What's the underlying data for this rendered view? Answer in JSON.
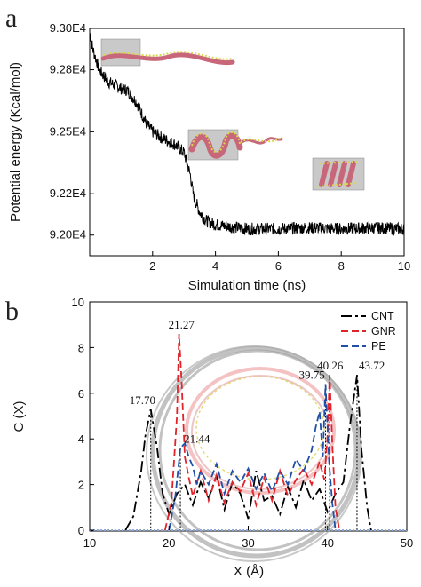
{
  "figure": {
    "panel_a_letter": "a",
    "panel_b_letter": "b",
    "panel_a_inset_icons": [
      "nanostructure-inset-icon",
      "nanostructure-inset-icon",
      "nanostructure-inset-icon"
    ],
    "panel_b_inset_icon": "ring-overlay-icon"
  },
  "chart_data": [
    {
      "type": "line",
      "xlabel": "Simulation time (ns)",
      "ylabel": "Potential energy (Kcal/mol)",
      "xlim": [
        0,
        10
      ],
      "ylim": [
        9.19,
        9.3
      ],
      "xticks": [
        2,
        4,
        6,
        8,
        10
      ],
      "xtick_labels": [
        "2",
        "4",
        "6",
        "8",
        "10"
      ],
      "yticks": [
        9.2,
        9.22,
        9.25,
        9.28,
        9.3
      ],
      "ytick_labels": [
        "9.20E4",
        "9.22E4",
        "9.25E4",
        "9.28E4",
        "9.30E4"
      ],
      "grid": false,
      "series": [
        {
          "color": "#000000",
          "x": [
            0,
            0.1,
            0.3,
            0.6,
            1.0,
            1.2,
            1.5,
            1.8,
            2.0,
            2.3,
            2.7,
            3.0,
            3.2,
            3.3,
            3.5,
            3.7,
            4.0,
            4.5,
            5,
            6,
            7,
            8,
            9,
            10
          ],
          "y": [
            9.298,
            9.29,
            9.28,
            9.274,
            9.271,
            9.27,
            9.264,
            9.254,
            9.25,
            9.247,
            9.244,
            9.24,
            9.229,
            9.219,
            9.211,
            9.207,
            9.205,
            9.204,
            9.203,
            9.203,
            9.2035,
            9.203,
            9.2035,
            9.203
          ]
        }
      ]
    },
    {
      "type": "line",
      "xlabel": "X (Å)",
      "ylabel": "C (X)",
      "xlim": [
        10,
        50
      ],
      "ylim": [
        0,
        10
      ],
      "xticks": [
        10,
        20,
        30,
        40,
        50
      ],
      "xtick_labels": [
        "10",
        "20",
        "30",
        "40",
        "50"
      ],
      "yticks": [
        0,
        2,
        4,
        6,
        8,
        10
      ],
      "ytick_labels": [
        "0",
        "2",
        "4",
        "6",
        "8",
        "10"
      ],
      "grid": false,
      "legend": "top-right",
      "series": [
        {
          "name": "CNT",
          "color": "#000000",
          "dash": "dashdot",
          "x": [
            14.5,
            15.5,
            16.5,
            17.0,
            17.7,
            18.5,
            19.2,
            20.0,
            21.0,
            22.0,
            23.0,
            24.0,
            25.0,
            26.0,
            27.0,
            28.0,
            29.0,
            30.0,
            31.0,
            32.0,
            33.0,
            34.0,
            35.0,
            36.0,
            37.0,
            38.0,
            39.0,
            40.0,
            41.0,
            42.0,
            42.8,
            43.72,
            44.3,
            45.0,
            45.5
          ],
          "y": [
            0,
            0.6,
            2.6,
            4.1,
            5.3,
            3.6,
            1.6,
            0.7,
            1.6,
            2.0,
            1.1,
            2.1,
            1.4,
            2.4,
            0.9,
            2.1,
            1.6,
            0.5,
            2.6,
            1.3,
            1.5,
            0.7,
            1.9,
            1.0,
            2.2,
            1.3,
            1.8,
            0.8,
            1.6,
            2.1,
            4.5,
            6.8,
            3.5,
            1.0,
            0
          ]
        },
        {
          "name": "GNR",
          "color": "#e0242a",
          "dash": "dashed",
          "x": [
            19.5,
            20.3,
            21.0,
            21.27,
            21.6,
            22.0,
            22.5,
            23.0,
            24.0,
            25.0,
            26.0,
            27.0,
            28.0,
            29.0,
            30.0,
            31.0,
            32.0,
            33.0,
            34.0,
            35.0,
            36.0,
            37.0,
            38.0,
            39.0,
            39.6,
            40.0,
            40.26,
            40.6,
            41.0,
            41.5
          ],
          "y": [
            0,
            1.2,
            5.0,
            8.6,
            6.5,
            3.2,
            2.3,
            1.5,
            2.6,
            1.3,
            2.4,
            1.2,
            2.1,
            1.7,
            2.5,
            1.1,
            2.3,
            1.3,
            2.6,
            1.5,
            2.2,
            2.7,
            2.0,
            3.0,
            2.2,
            4.2,
            6.8,
            3.8,
            1.0,
            0
          ]
        },
        {
          "name": "PE",
          "color": "#1f4fa8",
          "dash": "dashed",
          "x": [
            20.0,
            20.8,
            21.44,
            22.0,
            22.5,
            23.0,
            23.5,
            24.0,
            25.0,
            26.0,
            27.0,
            28.0,
            29.0,
            30.0,
            31.0,
            32.0,
            33.0,
            34.0,
            35.0,
            36.0,
            37.0,
            38.0,
            38.5,
            39.0,
            39.4,
            39.75,
            40.2,
            40.6,
            41.0
          ],
          "y": [
            0,
            1.5,
            3.6,
            3.8,
            3.2,
            2.8,
            2.0,
            2.6,
            2.0,
            2.9,
            1.6,
            2.6,
            2.1,
            2.7,
            1.8,
            2.5,
            1.7,
            2.6,
            2.0,
            3.1,
            2.6,
            3.5,
            4.5,
            5.2,
            3.2,
            6.4,
            3.0,
            1.2,
            0
          ]
        }
      ],
      "annotations": [
        {
          "text": "17.70",
          "x": 17.7,
          "y": 5.3
        },
        {
          "text": "21.27",
          "x": 21.27,
          "y": 8.6
        },
        {
          "text": "21.44",
          "x": 21.44,
          "y": 3.6
        },
        {
          "text": "39.75",
          "x": 39.75,
          "y": 6.4
        },
        {
          "text": "40.26",
          "x": 40.26,
          "y": 6.8
        },
        {
          "text": "43.72",
          "x": 43.72,
          "y": 6.8
        }
      ]
    }
  ]
}
